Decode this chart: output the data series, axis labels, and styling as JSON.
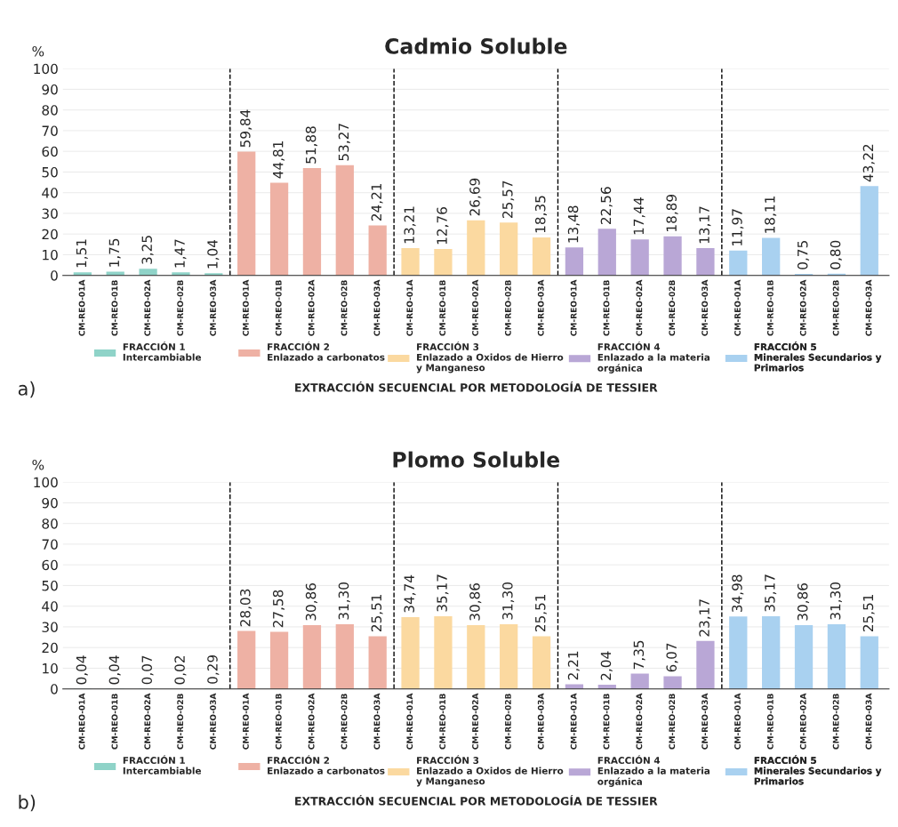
{
  "chart_data": [
    {
      "type": "bar",
      "title": "Cadmio Soluble",
      "ylabel": "%",
      "xlabel": "EXTRACCIÓN SECUENCIAL POR METODOLOGÍA DE TESSIER",
      "annotations": [
        "a)"
      ],
      "categories": [
        "CM-REO-01A",
        "CM-REO-01B",
        "CM-REO-02A",
        "CM-REO-02B",
        "CM-REO-03A",
        "CM-REO-01A",
        "CM-REO-01B",
        "CM-REO-02A",
        "CM-REO-02B",
        "CM-REO-03A",
        "CM-REO-01A",
        "CM-REO-01B",
        "CM-REO-02A",
        "CM-REO-02B",
        "CM-REO-03A",
        "CM-REO-01A",
        "CM-REO-01B",
        "CM-REO-02A",
        "CM-REO-02B",
        "CM-REO-03A",
        "CM-REO-01A",
        "CM-REO-01B",
        "CM-REO-02A",
        "CM-REO-02B",
        "CM-REO-03A"
      ],
      "ylim": [
        0,
        100
      ],
      "yticks": [
        0,
        10,
        20,
        30,
        40,
        50,
        60,
        70,
        80,
        90,
        100
      ],
      "grid": "y",
      "legend": "bottom",
      "series": [
        {
          "name": "FRACCIÓN 1\nIntercambiable",
          "color": "#8fd3c8",
          "values": [
            1.51,
            1.75,
            3.25,
            1.47,
            1.04,
            null,
            null,
            null,
            null,
            null,
            null,
            null,
            null,
            null,
            null,
            null,
            null,
            null,
            null,
            null,
            null,
            null,
            null,
            null,
            null
          ],
          "value_labels": [
            "1,51",
            "1,75",
            "3,25",
            "1,47",
            "1,04",
            null,
            null,
            null,
            null,
            null,
            null,
            null,
            null,
            null,
            null,
            null,
            null,
            null,
            null,
            null,
            null,
            null,
            null,
            null,
            null
          ]
        },
        {
          "name": "FRACCIÓN 2\nEnlazado a carbonatos",
          "color": "#eeb1a4",
          "values": [
            null,
            null,
            null,
            null,
            null,
            59.84,
            44.81,
            51.88,
            53.27,
            24.21,
            null,
            null,
            null,
            null,
            null,
            null,
            null,
            null,
            null,
            null,
            null,
            null,
            null,
            null,
            null
          ],
          "value_labels": [
            null,
            null,
            null,
            null,
            null,
            "59,84",
            "44,81",
            "51,88",
            "53,27",
            "24,21",
            null,
            null,
            null,
            null,
            null,
            null,
            null,
            null,
            null,
            null,
            null,
            null,
            null,
            null,
            null
          ]
        },
        {
          "name": "FRACCIÓN 3\nEnlazado a Oxidos de Hierro\ny Manganeso",
          "color": "#fbd9a0",
          "values": [
            null,
            null,
            null,
            null,
            null,
            null,
            null,
            null,
            null,
            null,
            13.21,
            12.76,
            26.69,
            25.57,
            18.35,
            null,
            null,
            null,
            null,
            null,
            null,
            null,
            null,
            null,
            null
          ],
          "value_labels": [
            null,
            null,
            null,
            null,
            null,
            null,
            null,
            null,
            null,
            null,
            "13,21",
            "12,76",
            "26,69",
            "25,57",
            "18,35",
            null,
            null,
            null,
            null,
            null,
            null,
            null,
            null,
            null,
            null
          ]
        },
        {
          "name": "FRACCIÓN 4\nEnlazado a la materia\norgánica",
          "color": "#b9a7d6",
          "values": [
            null,
            null,
            null,
            null,
            null,
            null,
            null,
            null,
            null,
            null,
            null,
            null,
            null,
            null,
            null,
            13.48,
            22.56,
            17.44,
            18.89,
            13.17,
            null,
            null,
            null,
            null,
            null
          ],
          "value_labels": [
            null,
            null,
            null,
            null,
            null,
            null,
            null,
            null,
            null,
            null,
            null,
            null,
            null,
            null,
            null,
            "13,48",
            "22,56",
            "17,44",
            "18,89",
            "13,17",
            null,
            null,
            null,
            null,
            null
          ]
        },
        {
          "name": "FRACCIÓN 5\nMinerales Secundarios y\nPrimarios",
          "color": "#a9d1f0",
          "values": [
            null,
            null,
            null,
            null,
            null,
            null,
            null,
            null,
            null,
            null,
            null,
            null,
            null,
            null,
            null,
            null,
            null,
            null,
            null,
            null,
            11.97,
            18.11,
            0.75,
            0.8,
            43.22
          ],
          "value_labels": [
            null,
            null,
            null,
            null,
            null,
            null,
            null,
            null,
            null,
            null,
            null,
            null,
            null,
            null,
            null,
            null,
            null,
            null,
            null,
            null,
            "11,97",
            "18,11",
            "0,75",
            "0,80",
            "43,22"
          ]
        }
      ]
    },
    {
      "type": "bar",
      "title": "Plomo Soluble",
      "ylabel": "%",
      "xlabel": "EXTRACCIÓN SECUENCIAL POR METODOLOGÍA DE TESSIER",
      "annotations": [
        "b)"
      ],
      "categories": [
        "CM-REO-01A",
        "CM-REO-01B",
        "CM-REO-02A",
        "CM-REO-02B",
        "CM-REO-03A",
        "CM-REO-01A",
        "CM-REO-01B",
        "CM-REO-02A",
        "CM-REO-02B",
        "CM-REO-03A",
        "CM-REO-01A",
        "CM-REO-01B",
        "CM-REO-02A",
        "CM-REO-02B",
        "CM-REO-03A",
        "CM-REO-01A",
        "CM-REO-01B",
        "CM-REO-02A",
        "CM-REO-02B",
        "CM-REO-03A",
        "CM-REO-01A",
        "CM-REO-01B",
        "CM-REO-02A",
        "CM-REO-02B",
        "CM-REO-03A"
      ],
      "ylim": [
        0,
        100
      ],
      "yticks": [
        0,
        10,
        20,
        30,
        40,
        50,
        60,
        70,
        80,
        90,
        100
      ],
      "grid": "y",
      "legend": "bottom",
      "series": [
        {
          "name": "FRACCIÓN 1\nIntercambiable",
          "color": "#8fd3c8",
          "values": [
            0.04,
            0.04,
            0.07,
            0.02,
            0.29,
            null,
            null,
            null,
            null,
            null,
            null,
            null,
            null,
            null,
            null,
            null,
            null,
            null,
            null,
            null,
            null,
            null,
            null,
            null,
            null
          ],
          "value_labels": [
            "0,04",
            "0,04",
            "0,07",
            "0,02",
            "0,29",
            null,
            null,
            null,
            null,
            null,
            null,
            null,
            null,
            null,
            null,
            null,
            null,
            null,
            null,
            null,
            null,
            null,
            null,
            null,
            null
          ]
        },
        {
          "name": "FRACCIÓN 2\nEnlazado a carbonatos",
          "color": "#eeb1a4",
          "values": [
            null,
            null,
            null,
            null,
            null,
            28.03,
            27.58,
            30.86,
            31.3,
            25.51,
            null,
            null,
            null,
            null,
            null,
            null,
            null,
            null,
            null,
            null,
            null,
            null,
            null,
            null,
            null
          ],
          "value_labels": [
            null,
            null,
            null,
            null,
            null,
            "28,03",
            "27,58",
            "30,86",
            "31,30",
            "25,51",
            null,
            null,
            null,
            null,
            null,
            null,
            null,
            null,
            null,
            null,
            null,
            null,
            null,
            null,
            null
          ]
        },
        {
          "name": "FRACCIÓN 3\nEnlazado a Oxidos de Hierro\ny Manganeso",
          "color": "#fbd9a0",
          "values": [
            null,
            null,
            null,
            null,
            null,
            null,
            null,
            null,
            null,
            null,
            34.74,
            35.17,
            30.86,
            31.3,
            25.51,
            null,
            null,
            null,
            null,
            null,
            null,
            null,
            null,
            null,
            null
          ],
          "value_labels": [
            null,
            null,
            null,
            null,
            null,
            null,
            null,
            null,
            null,
            null,
            "34,74",
            "35,17",
            "30,86",
            "31,30",
            "25,51",
            null,
            null,
            null,
            null,
            null,
            null,
            null,
            null,
            null,
            null
          ]
        },
        {
          "name": "FRACCIÓN 4\nEnlazado a la materia\norgánica",
          "color": "#b9a7d6",
          "values": [
            null,
            null,
            null,
            null,
            null,
            null,
            null,
            null,
            null,
            null,
            null,
            null,
            null,
            null,
            null,
            2.21,
            2.04,
            7.35,
            6.07,
            23.17,
            null,
            null,
            null,
            null,
            null
          ],
          "value_labels": [
            null,
            null,
            null,
            null,
            null,
            null,
            null,
            null,
            null,
            null,
            null,
            null,
            null,
            null,
            null,
            "2,21",
            "2,04",
            "7,35",
            "6,07",
            "23,17",
            null,
            null,
            null,
            null,
            null
          ]
        },
        {
          "name": "FRACCIÓN 5\nMinerales Secundarios y\nPrimarios",
          "color": "#a9d1f0",
          "values": [
            null,
            null,
            null,
            null,
            null,
            null,
            null,
            null,
            null,
            null,
            null,
            null,
            null,
            null,
            null,
            null,
            null,
            null,
            null,
            null,
            34.98,
            35.17,
            30.86,
            31.3,
            25.51
          ],
          "value_labels": [
            null,
            null,
            null,
            null,
            null,
            null,
            null,
            null,
            null,
            null,
            null,
            null,
            null,
            null,
            null,
            null,
            null,
            null,
            null,
            null,
            "34,98",
            "35,17",
            "30,86",
            "31,30",
            "25,51"
          ]
        }
      ]
    }
  ]
}
